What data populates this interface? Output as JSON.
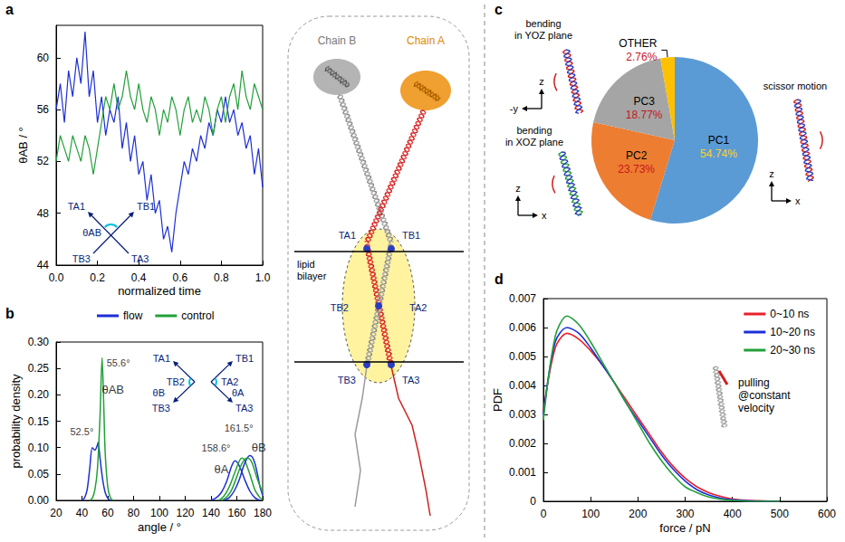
{
  "chart_data": [
    {
      "panel": "a",
      "type": "line",
      "grid": false,
      "x_label": "normalized time",
      "y_label": "θAB / °",
      "xlim": [
        0,
        1
      ],
      "xticks": [
        {
          "value": 0,
          "label": "0.0"
        },
        0.2,
        0.4,
        0.6,
        0.8,
        {
          "value": 1,
          "label": "1.0"
        }
      ],
      "ylim": [
        44,
        62.5
      ],
      "yticks": [
        44,
        48,
        52,
        56,
        60
      ],
      "x": [
        0,
        0.02,
        0.04,
        0.06,
        0.08,
        0.1,
        0.12,
        0.14,
        0.16,
        0.18,
        0.2,
        0.22,
        0.24,
        0.26,
        0.28,
        0.3,
        0.32,
        0.34,
        0.36,
        0.38,
        0.4,
        0.42,
        0.44,
        0.46,
        0.48,
        0.5,
        0.52,
        0.54,
        0.56,
        0.58,
        0.6,
        0.62,
        0.64,
        0.66,
        0.68,
        0.7,
        0.72,
        0.74,
        0.76,
        0.78,
        0.8,
        0.82,
        0.84,
        0.86,
        0.88,
        0.9,
        0.92,
        0.94,
        0.96,
        0.98,
        1
      ],
      "series": [
        {
          "name": "flow",
          "color": "#1c2fd6",
          "values": [
            56,
            58,
            55,
            59,
            57,
            60,
            58,
            62,
            57,
            59,
            55,
            57,
            54,
            56,
            55,
            57,
            53,
            55,
            52,
            54,
            51,
            52,
            49,
            51,
            48,
            49,
            46,
            47,
            45,
            48,
            50,
            52,
            51,
            53,
            52,
            54,
            53,
            55,
            54,
            56,
            55,
            57,
            55,
            56,
            54,
            55,
            53,
            54,
            51,
            53,
            50
          ]
        },
        {
          "name": "control",
          "color": "#22a03a",
          "values": [
            52,
            54,
            53,
            52,
            54,
            53,
            52,
            54,
            53,
            51,
            53,
            55,
            57,
            56,
            58,
            56,
            57,
            59,
            57,
            56,
            58,
            56,
            55,
            57,
            56,
            54,
            56,
            55,
            57,
            56,
            54,
            56,
            57,
            55,
            56,
            55,
            57,
            56,
            54,
            56,
            57,
            55,
            57,
            58,
            56,
            59,
            57,
            56,
            58,
            57,
            56
          ]
        }
      ],
      "inset": {
        "points": [
          "TA1",
          "TB1",
          "TB3",
          "TA3"
        ],
        "angle": "θAB"
      }
    },
    {
      "panel": "b",
      "type": "line",
      "grid": false,
      "legend": "top",
      "x_label": "angle / °",
      "y_label": "probability density",
      "xlim": [
        20,
        180
      ],
      "xticks": [
        20,
        40,
        60,
        80,
        100,
        120,
        140,
        160,
        180
      ],
      "ylim": [
        0,
        0.3
      ],
      "yticks": [
        {
          "value": 0,
          "label": "0.00"
        },
        0.05,
        {
          "value": 0.1,
          "label": "0.10"
        },
        0.15,
        {
          "value": 0.2,
          "label": "0.20"
        },
        0.25,
        {
          "value": 0.3,
          "label": "0.30"
        }
      ],
      "series": [
        {
          "name": "flow",
          "color": "#1c2fd6",
          "x": [
            40,
            42,
            44,
            46,
            48,
            50,
            52,
            52.5,
            54,
            56,
            58,
            60,
            62
          ],
          "values": [
            0,
            0.005,
            0.02,
            0.06,
            0.1,
            0.095,
            0.105,
            0.11,
            0.08,
            0.04,
            0.015,
            0.004,
            0
          ]
        },
        {
          "name": "control",
          "color": "#22a03a",
          "x": [
            46,
            48,
            50,
            52,
            54,
            55.6,
            57,
            58,
            60,
            62,
            64
          ],
          "values": [
            0,
            0.004,
            0.02,
            0.06,
            0.16,
            0.27,
            0.17,
            0.09,
            0.025,
            0.005,
            0
          ]
        },
        {
          "name": "flow",
          "color": "#1c2fd6",
          "x": [
            140,
            144,
            148,
            152,
            156,
            158.6,
            162,
            166,
            170,
            174,
            178
          ],
          "values": [
            0,
            0.005,
            0.015,
            0.035,
            0.065,
            0.075,
            0.065,
            0.04,
            0.018,
            0.005,
            0
          ]
        },
        {
          "name": "control",
          "color": "#22a03a",
          "x": [
            146,
            150,
            154,
            158,
            162,
            164,
            166,
            170,
            174,
            178,
            180
          ],
          "values": [
            0,
            0.008,
            0.025,
            0.05,
            0.075,
            0.08,
            0.076,
            0.05,
            0.02,
            0.005,
            0.001
          ]
        },
        {
          "name": "flow",
          "color": "#1c2fd6",
          "x": [
            150,
            154,
            158,
            162,
            166,
            170,
            172,
            174,
            176,
            178,
            180
          ],
          "values": [
            0,
            0.005,
            0.018,
            0.04,
            0.07,
            0.085,
            0.082,
            0.07,
            0.05,
            0.025,
            0.01
          ]
        },
        {
          "name": "control",
          "color": "#22a03a",
          "x": [
            148,
            152,
            156,
            160,
            164,
            168,
            170,
            172,
            176,
            180
          ],
          "values": [
            0,
            0.006,
            0.02,
            0.045,
            0.07,
            0.08,
            0.078,
            0.07,
            0.04,
            0.015
          ]
        }
      ],
      "annotations": [
        {
          "text": "52.5°",
          "x": 52.5,
          "y": 0.13
        },
        {
          "text": "55.6°",
          "x": 55.6,
          "y": 0.26
        },
        {
          "text": "158.6°",
          "x": 158.6,
          "y": 0.1
        },
        {
          "text": "161.5°",
          "x": 161.5,
          "y": 0.12
        },
        {
          "text": "θAB",
          "x": 64,
          "y": 0.21
        },
        {
          "text": "θA",
          "x": 148,
          "y": 0.06
        },
        {
          "text": "θB",
          "x": 177,
          "y": 0.1
        }
      ],
      "inset": {
        "points": [
          "TA1",
          "TB1",
          "TB2",
          "TA2",
          "TB3",
          "TA3"
        ],
        "angles": [
          "θB",
          "θA"
        ]
      }
    },
    {
      "panel": "c",
      "type": "pie",
      "data_labels": true,
      "categories": [
        "PC1",
        "PC2",
        "PC3",
        "OTHER"
      ],
      "values": [
        54.74,
        23.73,
        18.77,
        2.76
      ],
      "value_labels": [
        "54.74%",
        "23.73%",
        "18.77%",
        "2.76%"
      ],
      "colors": [
        "#5b9bd5",
        "#ed7d31",
        "#a5a5a5",
        "#ffc000"
      ],
      "callouts": [
        {
          "category": "PC1",
          "text": "scissor motion",
          "axes": [
            "z",
            "x"
          ]
        },
        {
          "category": "PC2",
          "text": "bending in XOZ plane",
          "axes": [
            "z",
            "x"
          ]
        },
        {
          "category": "PC3",
          "text": "bending in YOZ plane",
          "axes": [
            "z",
            "-y"
          ]
        }
      ]
    },
    {
      "panel": "d",
      "type": "line",
      "grid": false,
      "legend": "top-right",
      "x_label": "force / pN",
      "y_label": "PDF",
      "xlim": [
        0,
        600
      ],
      "xticks": [
        0,
        100,
        200,
        300,
        400,
        500,
        600
      ],
      "ylim": [
        0,
        0.007
      ],
      "yticks": [
        0,
        0.001,
        0.002,
        0.003,
        0.004,
        0.005,
        0.006,
        0.007
      ],
      "x": [
        0,
        25,
        50,
        75,
        100,
        125,
        150,
        175,
        200,
        225,
        250,
        275,
        300,
        325,
        350,
        375,
        400,
        425,
        450,
        475,
        500
      ],
      "series": [
        {
          "name": "0~10 ns",
          "color": "#e8202a",
          "values": [
            0.0031,
            0.0053,
            0.0058,
            0.0056,
            0.0052,
            0.0047,
            0.0041,
            0.0035,
            0.0029,
            0.0023,
            0.0017,
            0.0012,
            0.0008,
            0.0005,
            0.0003,
            0.00017,
            8e-05,
            4e-05,
            2e-05,
            1e-05,
            0
          ]
        },
        {
          "name": "10~20 ns",
          "color": "#1c2fd6",
          "values": [
            0.003,
            0.0055,
            0.006,
            0.0058,
            0.0053,
            0.0047,
            0.0041,
            0.0034,
            0.0028,
            0.0022,
            0.0016,
            0.0011,
            0.0007,
            0.0004,
            0.00022,
            0.00011,
            5e-05,
            2e-05,
            1e-05,
            0,
            0
          ]
        },
        {
          "name": "20~30 ns",
          "color": "#22a03a",
          "values": [
            0.0028,
            0.0057,
            0.0064,
            0.0061,
            0.0055,
            0.0048,
            0.0041,
            0.0034,
            0.0027,
            0.002,
            0.0014,
            0.0009,
            0.0005,
            0.0003,
            0.00015,
            7e-05,
            3e-05,
            1e-05,
            0,
            0,
            0
          ]
        }
      ],
      "annotations": [
        {
          "text": "pulling @constant velocity"
        }
      ]
    }
  ],
  "diagram": {
    "chains": [
      "Chain B",
      "Chain A"
    ],
    "membrane": "lipid bilayer",
    "helix_ends": [
      "TA1",
      "TB1",
      "TB2",
      "TA2",
      "TB3",
      "TA3"
    ]
  }
}
